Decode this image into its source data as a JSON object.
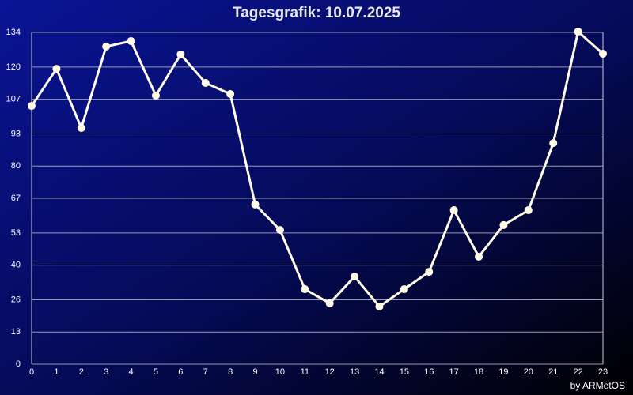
{
  "chart_data": {
    "type": "line",
    "title": "Tagesgrafik: 10.07.2025",
    "footer": "by ARMetOS",
    "x": [
      0,
      1,
      2,
      3,
      4,
      5,
      6,
      7,
      8,
      9,
      10,
      11,
      12,
      13,
      14,
      15,
      16,
      17,
      18,
      19,
      20,
      21,
      22,
      23
    ],
    "series": [
      {
        "color": "#fffbe6",
        "values": [
          104.3,
          119.3,
          95.4,
          128.3,
          130.5,
          108.5,
          125.1,
          113.6,
          109.1,
          64.5,
          54.2,
          30.3,
          24.6,
          35.4,
          23.3,
          30.3,
          37.3,
          62.2,
          43.4,
          56.2,
          62.2,
          89.3,
          134.3,
          125.4
        ]
      }
    ],
    "xlim": [
      0,
      23
    ],
    "xticks": [
      0,
      1,
      2,
      3,
      4,
      5,
      6,
      7,
      8,
      9,
      10,
      11,
      12,
      13,
      14,
      15,
      16,
      17,
      18,
      19,
      20,
      21,
      22,
      23
    ],
    "ylim": [
      0,
      134
    ],
    "yticks": [
      0,
      13,
      26,
      40,
      53,
      67,
      80,
      93,
      107,
      120,
      134
    ],
    "grid": true
  }
}
